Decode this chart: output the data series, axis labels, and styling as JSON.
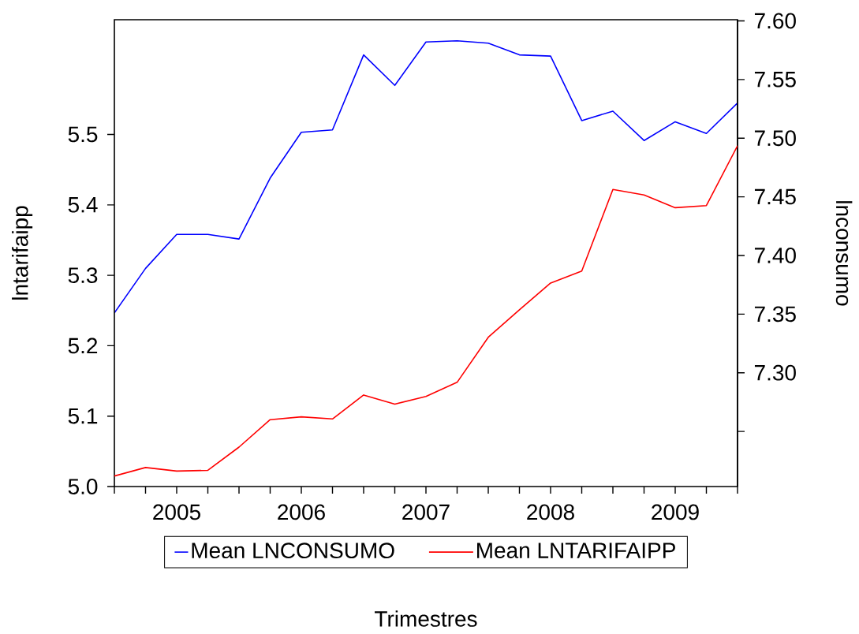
{
  "chart_data": {
    "type": "line",
    "xlabel": "Trimestres",
    "ylabel": "lntarifaipp",
    "y2label": "lnconsumo",
    "x": [
      2005,
      2005.25,
      2005.5,
      2005.75,
      2006,
      2006.25,
      2006.5,
      2006.75,
      2007,
      2007.25,
      2007.5,
      2007.75,
      2008,
      2008.25,
      2008.5,
      2008.75,
      2009,
      2009.25,
      2009.5,
      2009.75,
      2010
    ],
    "xlim": [
      2005,
      2010
    ],
    "xticks": [
      {
        "value": 2005,
        "label": null
      },
      {
        "value": 2005.25,
        "label": null
      },
      {
        "value": 2005.5,
        "label": "2005"
      },
      {
        "value": 2005.75,
        "label": null
      },
      {
        "value": 2006,
        "label": null
      },
      {
        "value": 2006.25,
        "label": null
      },
      {
        "value": 2006.5,
        "label": "2006"
      },
      {
        "value": 2006.75,
        "label": null
      },
      {
        "value": 2007,
        "label": null
      },
      {
        "value": 2007.25,
        "label": null
      },
      {
        "value": 2007.5,
        "label": "2007"
      },
      {
        "value": 2007.75,
        "label": null
      },
      {
        "value": 2008,
        "label": null
      },
      {
        "value": 2008.25,
        "label": null
      },
      {
        "value": 2008.5,
        "label": "2008"
      },
      {
        "value": 2008.75,
        "label": null
      },
      {
        "value": 2009,
        "label": null
      },
      {
        "value": 2009.25,
        "label": null
      },
      {
        "value": 2009.5,
        "label": "2009"
      },
      {
        "value": 2009.75,
        "label": null
      },
      {
        "value": 2010,
        "label": null
      }
    ],
    "ylim": [
      5.0,
      5.663
    ],
    "yticks": [
      {
        "value": 5.0,
        "label": "5.0"
      },
      {
        "value": 5.1,
        "label": "5.1"
      },
      {
        "value": 5.2,
        "label": "5.2"
      },
      {
        "value": 5.3,
        "label": "5.3"
      },
      {
        "value": 5.4,
        "label": "5.4"
      },
      {
        "value": 5.5,
        "label": "5.5"
      }
    ],
    "y2lim": [
      7.203,
      7.601
    ],
    "y2ticks": [
      {
        "value": 7.25,
        "label": null
      },
      {
        "value": 7.3,
        "label": "7.30"
      },
      {
        "value": 7.35,
        "label": "7.35"
      },
      {
        "value": 7.4,
        "label": "7.40"
      },
      {
        "value": 7.45,
        "label": "7.45"
      },
      {
        "value": 7.5,
        "label": "7.50"
      },
      {
        "value": 7.55,
        "label": "7.55"
      },
      {
        "value": 7.6,
        "label": "7.60"
      }
    ],
    "legend": "bottom",
    "line_style": "solid",
    "marker": "none",
    "series": [
      {
        "name": "Mean LNCONSUMO",
        "color": "#0000ff",
        "axis": "y2",
        "values": [
          7.351,
          7.389,
          7.418,
          7.418,
          7.414,
          7.466,
          7.505,
          7.507,
          7.571,
          7.545,
          7.582,
          7.583,
          7.581,
          7.571,
          7.57,
          7.515,
          7.523,
          7.498,
          7.514,
          7.504,
          7.53
        ]
      },
      {
        "name": "Mean LNTARIFAIPP",
        "color": "#ff0000",
        "values": [
          5.015,
          5.027,
          5.022,
          5.023,
          5.056,
          5.095,
          5.099,
          5.096,
          5.13,
          5.117,
          5.128,
          5.148,
          5.212,
          5.251,
          5.289,
          5.306,
          5.422,
          5.414,
          5.396,
          5.399,
          5.484
        ]
      }
    ]
  }
}
